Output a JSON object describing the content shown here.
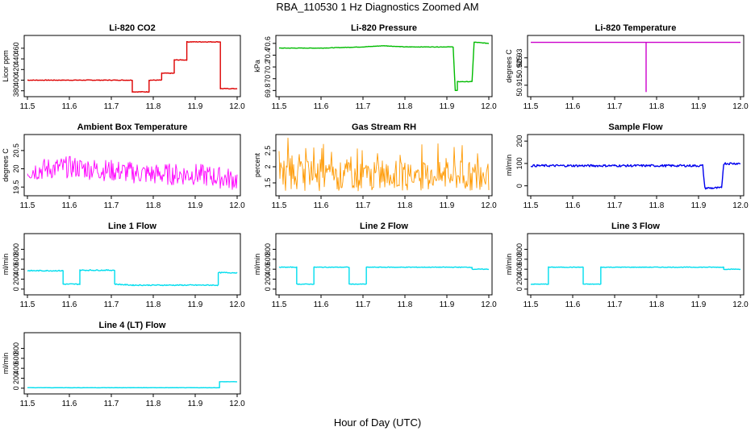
{
  "figure": {
    "title": "RBA_110530  1 Hz Diagnostics Zoomed AM",
    "xlabel": "Hour of Day (UTC)"
  },
  "chart_data": [
    {
      "id": "co2",
      "type": "line",
      "title": "Li-820 CO2",
      "ylabel": "Licor ppm",
      "xlabel": "",
      "xlim": [
        11.5,
        12.0
      ],
      "ylim": [
        375,
        478
      ],
      "xticks": [
        "11.5",
        "11.6",
        "11.7",
        "11.8",
        "11.9",
        "12.0"
      ],
      "yticks": [
        380,
        400,
        420,
        440,
        460
      ],
      "color": "#dd0000",
      "noise": 0.6,
      "series": [
        {
          "values": [
            [
              11.5,
              400
            ],
            [
              11.75,
              400
            ],
            [
              11.75,
              378
            ],
            [
              11.79,
              378
            ],
            [
              11.79,
              400
            ],
            [
              11.82,
              400
            ],
            [
              11.82,
              413
            ],
            [
              11.85,
              413
            ],
            [
              11.85,
              438
            ],
            [
              11.88,
              438
            ],
            [
              11.88,
              472
            ],
            [
              11.96,
              472
            ],
            [
              11.96,
              384
            ],
            [
              12.0,
              384
            ]
          ]
        }
      ]
    },
    {
      "id": "pressure",
      "type": "line",
      "title": "Li-820 Pressure",
      "ylabel": "kPa",
      "xlabel": "",
      "xlim": [
        11.5,
        12.0
      ],
      "ylim": [
        69.75,
        70.68
      ],
      "xticks": [
        "11.5",
        "11.6",
        "11.7",
        "11.8",
        "11.9",
        "12.0"
      ],
      "yticks": [
        69.8,
        70.0,
        70.2,
        70.4,
        70.6
      ],
      "color": "#00bb00",
      "noise": 0.004,
      "series": [
        {
          "values": [
            [
              11.5,
              70.52
            ],
            [
              11.6,
              70.52
            ],
            [
              11.7,
              70.54
            ],
            [
              11.75,
              70.56
            ],
            [
              11.8,
              70.54
            ],
            [
              11.9,
              70.54
            ],
            [
              11.915,
              70.54
            ],
            [
              11.92,
              69.8
            ],
            [
              11.925,
              69.8
            ],
            [
              11.925,
              69.95
            ],
            [
              11.96,
              69.95
            ],
            [
              11.965,
              70.62
            ],
            [
              12.0,
              70.6
            ]
          ]
        }
      ]
    },
    {
      "id": "temp",
      "type": "line",
      "title": "Li-820 Temperature",
      "ylabel": "degrees C",
      "xlabel": "",
      "xlim": [
        11.5,
        12.0
      ],
      "ylim": [
        50.9105,
        50.9405
      ],
      "xticks": [
        "11.5",
        "11.6",
        "11.7",
        "11.8",
        "11.9",
        "12.0"
      ],
      "yticks": [
        50.915,
        50.925,
        50.93
      ],
      "color": "#cc00cc",
      "noise": 0,
      "series": [
        {
          "values": [
            [
              11.5,
              50.9385
            ],
            [
              11.775,
              50.9385
            ],
            [
              11.775,
              50.9115
            ],
            [
              11.775,
              50.9385
            ],
            [
              12.0,
              50.9385
            ]
          ]
        }
      ]
    },
    {
      "id": "ambient",
      "type": "line",
      "title": "Ambient Box Temperature",
      "ylabel": "degrees C",
      "xlabel": "",
      "xlim": [
        11.5,
        12.0
      ],
      "ylim": [
        19.35,
        20.85
      ],
      "xticks": [
        "11.5",
        "11.6",
        "11.7",
        "11.8",
        "11.9",
        "12.0"
      ],
      "yticks": [
        19.5,
        20.0,
        20.5
      ],
      "color": "#ff00ff",
      "noise": 0.3,
      "series": [
        {
          "values": [
            [
              11.5,
              19.95
            ],
            [
              11.6,
              20.05
            ],
            [
              11.7,
              19.95
            ],
            [
              11.8,
              19.85
            ],
            [
              11.9,
              19.85
            ],
            [
              12.0,
              19.7
            ]
          ]
        }
      ]
    },
    {
      "id": "rh",
      "type": "line",
      "title": "Gas Stream RH",
      "ylabel": "percent",
      "xlabel": "",
      "xlim": [
        11.5,
        12.0
      ],
      "ylim": [
        1.2,
        2.9
      ],
      "xticks": [
        "11.5",
        "11.6",
        "11.7",
        "11.8",
        "11.9",
        "12.0"
      ],
      "yticks": [
        1.5,
        2.0,
        2.5
      ],
      "color": "#ff9900",
      "noise": 0.45,
      "series": [
        {
          "values": [
            [
              11.5,
              1.7
            ],
            [
              12.0,
              1.7
            ]
          ]
        }
      ]
    },
    {
      "id": "sample",
      "type": "line",
      "title": "Sample Flow",
      "ylabel": "ml/min",
      "xlabel": "",
      "xlim": [
        11.5,
        12.0
      ],
      "ylim": [
        -30,
        215
      ],
      "xticks": [
        "11.5",
        "11.6",
        "11.7",
        "11.8",
        "11.9",
        "12.0"
      ],
      "yticks": [
        0,
        100,
        200
      ],
      "color": "#0000ee",
      "noise": 5,
      "series": [
        {
          "values": [
            [
              11.5,
              90
            ],
            [
              11.91,
              90
            ],
            [
              11.915,
              -10
            ],
            [
              11.955,
              -10
            ],
            [
              11.96,
              100
            ],
            [
              12.0,
              100
            ]
          ]
        }
      ]
    },
    {
      "id": "line1",
      "type": "line",
      "title": "Line 1 Flow",
      "ylabel": "ml/min",
      "xlabel": "",
      "xlim": [
        11.5,
        12.0
      ],
      "ylim": [
        -50,
        1050
      ],
      "xticks": [
        "11.5",
        "11.6",
        "11.7",
        "11.8",
        "11.9",
        "12.0"
      ],
      "yticks": [
        0,
        200,
        400,
        600,
        800
      ],
      "color": "#00ddee",
      "noise": 10,
      "series": [
        {
          "values": [
            [
              11.5,
              370
            ],
            [
              11.585,
              370
            ],
            [
              11.585,
              100
            ],
            [
              11.625,
              100
            ],
            [
              11.625,
              380
            ],
            [
              11.708,
              380
            ],
            [
              11.708,
              100
            ],
            [
              11.75,
              80
            ],
            [
              11.955,
              80
            ],
            [
              11.955,
              330
            ],
            [
              12.0,
              330
            ]
          ]
        }
      ]
    },
    {
      "id": "line2",
      "type": "line",
      "title": "Line 2 Flow",
      "ylabel": "ml/min",
      "xlabel": "",
      "xlim": [
        11.5,
        12.0
      ],
      "ylim": [
        -50,
        1050
      ],
      "xticks": [
        "11.5",
        "11.6",
        "11.7",
        "11.8",
        "11.9",
        "12.0"
      ],
      "yticks": [
        0,
        200,
        400,
        600,
        800
      ],
      "color": "#00ddee",
      "noise": 6,
      "series": [
        {
          "values": [
            [
              11.5,
              440
            ],
            [
              11.542,
              440
            ],
            [
              11.542,
              100
            ],
            [
              11.583,
              100
            ],
            [
              11.583,
              440
            ],
            [
              11.667,
              440
            ],
            [
              11.667,
              100
            ],
            [
              11.708,
              100
            ],
            [
              11.708,
              440
            ],
            [
              11.96,
              440
            ],
            [
              11.96,
              400
            ],
            [
              12.0,
              400
            ]
          ]
        }
      ]
    },
    {
      "id": "line3",
      "type": "line",
      "title": "Line 3 Flow",
      "ylabel": "ml/min",
      "xlabel": "",
      "xlim": [
        11.5,
        12.0
      ],
      "ylim": [
        -50,
        1050
      ],
      "xticks": [
        "11.5",
        "11.6",
        "11.7",
        "11.8",
        "11.9",
        "12.0"
      ],
      "yticks": [
        0,
        200,
        400,
        600,
        800
      ],
      "color": "#00ddee",
      "noise": 6,
      "series": [
        {
          "values": [
            [
              11.5,
              100
            ],
            [
              11.542,
              100
            ],
            [
              11.542,
              440
            ],
            [
              11.625,
              440
            ],
            [
              11.625,
              100
            ],
            [
              11.667,
              100
            ],
            [
              11.667,
              440
            ],
            [
              11.96,
              440
            ],
            [
              11.96,
              400
            ],
            [
              12.0,
              400
            ]
          ]
        }
      ]
    },
    {
      "id": "line4",
      "type": "line",
      "title": "Line 4 (LT) Flow",
      "ylabel": "ml/min",
      "xlabel": "",
      "xlim": [
        11.5,
        12.0
      ],
      "ylim": [
        -50,
        1050
      ],
      "xticks": [
        "11.5",
        "11.6",
        "11.7",
        "11.8",
        "11.9",
        "12.0"
      ],
      "yticks": [
        0,
        200,
        400,
        600,
        800
      ],
      "color": "#00ddee",
      "noise": 2,
      "series": [
        {
          "values": [
            [
              11.5,
              10
            ],
            [
              11.958,
              10
            ],
            [
              11.958,
              130
            ],
            [
              12.0,
              130
            ]
          ]
        }
      ]
    }
  ]
}
